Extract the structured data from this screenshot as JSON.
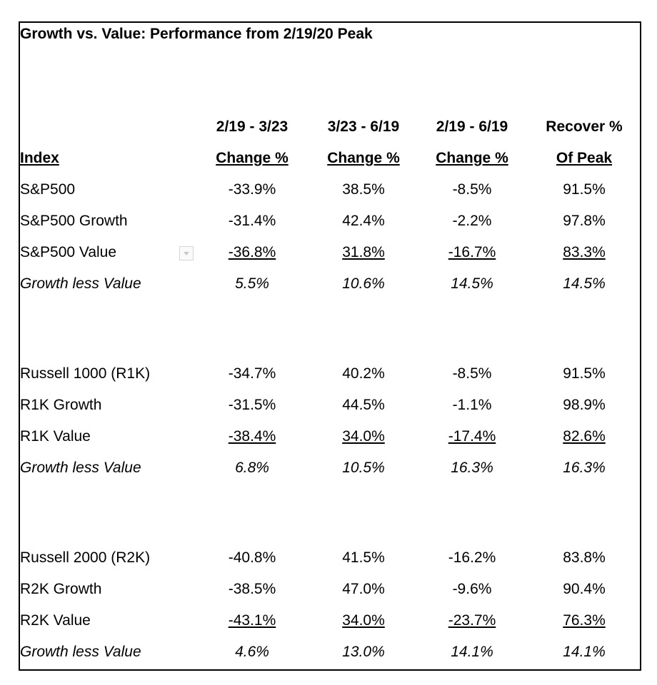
{
  "title": "Growth vs. Value: Performance from 2/19/20 Peak",
  "headers": {
    "index": "Index",
    "columns": [
      {
        "line1": "2/19 - 3/23",
        "line2": "Change %"
      },
      {
        "line1": "3/23 - 6/19",
        "line2": "Change %"
      },
      {
        "line1": "2/19 - 6/19",
        "line2": "Change %"
      },
      {
        "line1": "Recover %",
        "line2": "Of Peak"
      }
    ]
  },
  "groups": [
    {
      "rows": [
        {
          "label": "S&P500",
          "values": [
            "-33.9%",
            "38.5%",
            "-8.5%",
            "91.5%"
          ]
        },
        {
          "label": "S&P500 Growth",
          "values": [
            "-31.4%",
            "42.4%",
            "-2.2%",
            "97.8%"
          ]
        },
        {
          "label": "S&P500 Value",
          "values": [
            "-36.8%",
            "31.8%",
            "-16.7%",
            "83.3%"
          ]
        },
        {
          "label": "Growth less Value",
          "values": [
            "5.5%",
            "10.6%",
            "14.5%",
            "14.5%"
          ]
        }
      ]
    },
    {
      "rows": [
        {
          "label": "Russell 1000 (R1K)",
          "values": [
            "-34.7%",
            "40.2%",
            "-8.5%",
            "91.5%"
          ]
        },
        {
          "label": "R1K Growth",
          "values": [
            "-31.5%",
            "44.5%",
            "-1.1%",
            "98.9%"
          ]
        },
        {
          "label": "R1K Value",
          "values": [
            "-38.4%",
            "34.0%",
            "-17.4%",
            "82.6%"
          ]
        },
        {
          "label": "Growth less Value",
          "values": [
            "6.8%",
            "10.5%",
            "16.3%",
            "16.3%"
          ]
        }
      ]
    },
    {
      "rows": [
        {
          "label": "Russell 2000 (R2K)",
          "values": [
            "-40.8%",
            "41.5%",
            "-16.2%",
            "83.8%"
          ]
        },
        {
          "label": "R2K Growth",
          "values": [
            "-38.5%",
            "47.0%",
            "-9.6%",
            "90.4%"
          ]
        },
        {
          "label": "R2K Value",
          "values": [
            "-43.1%",
            "34.0%",
            "-23.7%",
            "76.3%"
          ]
        },
        {
          "label": "Growth less Value",
          "values": [
            "4.6%",
            "13.0%",
            "14.1%",
            "14.1%"
          ]
        }
      ]
    }
  ]
}
